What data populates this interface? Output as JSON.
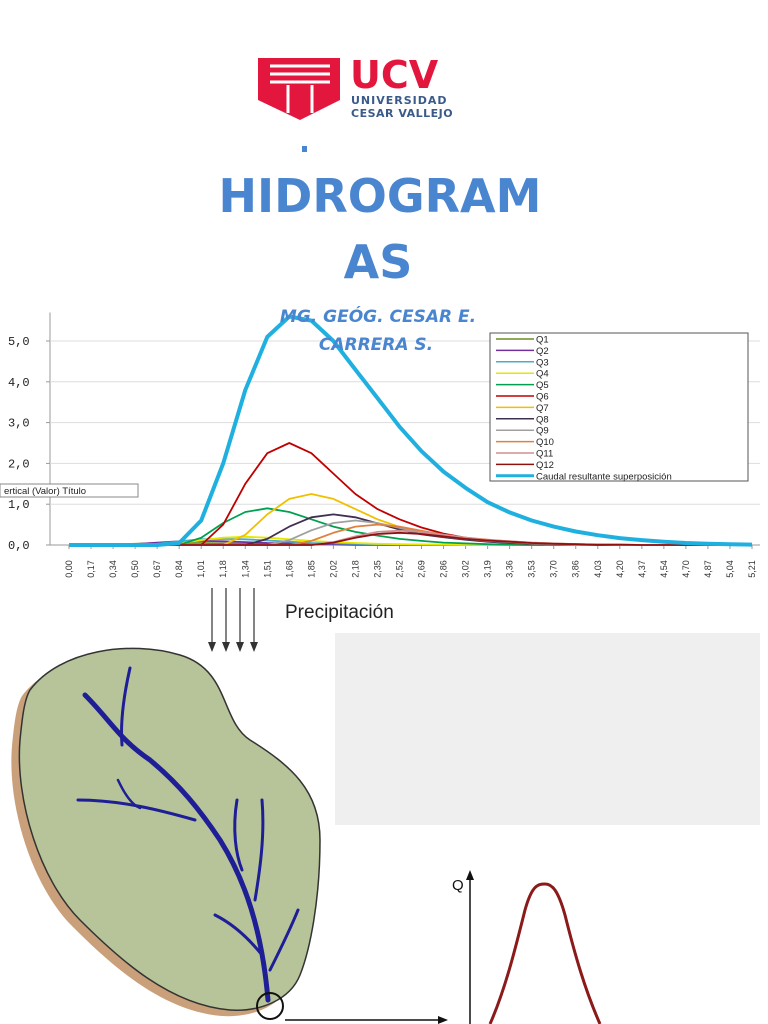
{
  "header": {
    "logo_main": "UCV",
    "logo_line1": "UNIVERSIDAD",
    "logo_line2": "CESAR VALLEJO",
    "title_lines": [
      "HIDROGRAM",
      "AS"
    ],
    "author_lines": [
      "MG. GEÓG. CESAR E.",
      "CARRERA S."
    ]
  },
  "chart_data": {
    "type": "line",
    "categories": [
      "0,00",
      "0,17",
      "0,34",
      "0,50",
      "0,67",
      "0,84",
      "1,01",
      "1,18",
      "1,34",
      "1,51",
      "1,68",
      "1,85",
      "2,02",
      "2,18",
      "2,35",
      "2,52",
      "2,69",
      "2,86",
      "3,02",
      "3,19",
      "3,36",
      "3,53",
      "3,70",
      "3,86",
      "4,03",
      "4,20",
      "4,37",
      "4,54",
      "4,70",
      "4,87",
      "5,04",
      "5,21"
    ],
    "ylim": [
      0,
      5.7
    ],
    "yticks": [
      {
        "value": 0,
        "label": "0,0"
      },
      {
        "value": 1,
        "label": "1,0"
      },
      {
        "value": 2,
        "label": "2,0"
      },
      {
        "value": 3,
        "label": "3,0"
      },
      {
        "value": 4,
        "label": "4,0"
      },
      {
        "value": 5,
        "label": "5,0"
      }
    ],
    "grid": true,
    "legend": "upper right",
    "tooltip": "ertical (Valor) Título",
    "series": [
      {
        "name": "Q1",
        "color": "#6b8e23",
        "values": [
          0,
          0,
          0.01,
          0.03,
          0.05,
          0.05,
          0.05,
          0.04,
          0.03,
          0.02,
          0.01,
          0.01,
          0.01,
          0,
          0,
          0,
          0,
          0,
          0,
          0,
          0,
          0,
          0,
          0,
          0,
          0,
          0,
          0,
          0,
          0,
          0,
          0
        ]
      },
      {
        "name": "Q2",
        "color": "#7030a0",
        "values": [
          0,
          0,
          0,
          0.02,
          0.06,
          0.09,
          0.1,
          0.09,
          0.07,
          0.05,
          0.04,
          0.03,
          0.02,
          0.01,
          0.01,
          0,
          0,
          0,
          0,
          0,
          0,
          0,
          0,
          0,
          0,
          0,
          0,
          0,
          0,
          0,
          0,
          0
        ]
      },
      {
        "name": "Q3",
        "color": "#4bacc6",
        "values": [
          0,
          0,
          0,
          0,
          0.03,
          0.09,
          0.14,
          0.15,
          0.14,
          0.11,
          0.08,
          0.05,
          0.04,
          0.03,
          0.02,
          0.01,
          0.01,
          0,
          0,
          0,
          0,
          0,
          0,
          0,
          0,
          0,
          0,
          0,
          0,
          0,
          0,
          0
        ]
      },
      {
        "name": "Q4",
        "color": "#e6e600",
        "values": [
          0,
          0,
          0,
          0,
          0,
          0.04,
          0.12,
          0.18,
          0.2,
          0.18,
          0.14,
          0.1,
          0.07,
          0.05,
          0.03,
          0.02,
          0.01,
          0.01,
          0,
          0,
          0,
          0,
          0,
          0,
          0,
          0,
          0,
          0,
          0,
          0,
          0,
          0
        ]
      },
      {
        "name": "Q5",
        "color": "#00a050",
        "values": [
          0,
          0,
          0,
          0,
          0,
          0,
          0.18,
          0.54,
          0.81,
          0.9,
          0.81,
          0.63,
          0.45,
          0.32,
          0.23,
          0.15,
          0.1,
          0.06,
          0.04,
          0.02,
          0.01,
          0,
          0,
          0,
          0,
          0,
          0,
          0,
          0,
          0,
          0,
          0
        ]
      },
      {
        "name": "Q6",
        "color": "#c00000",
        "values": [
          0,
          0,
          0,
          0,
          0,
          0,
          0,
          0.5,
          1.5,
          2.25,
          2.5,
          2.25,
          1.75,
          1.25,
          0.88,
          0.63,
          0.43,
          0.28,
          0.18,
          0.1,
          0.05,
          0.03,
          0,
          0,
          0,
          0,
          0,
          0,
          0,
          0,
          0,
          0
        ]
      },
      {
        "name": "Q7",
        "color": "#f0c000",
        "values": [
          0,
          0,
          0,
          0,
          0,
          0,
          0,
          0,
          0.25,
          0.75,
          1.13,
          1.25,
          1.13,
          0.88,
          0.63,
          0.44,
          0.31,
          0.21,
          0.14,
          0.09,
          0.05,
          0.03,
          0.01,
          0,
          0,
          0,
          0,
          0,
          0,
          0,
          0,
          0
        ]
      },
      {
        "name": "Q8",
        "color": "#403050",
        "values": [
          0,
          0,
          0,
          0,
          0,
          0,
          0,
          0,
          0,
          0.15,
          0.45,
          0.68,
          0.75,
          0.68,
          0.53,
          0.38,
          0.26,
          0.19,
          0.13,
          0.08,
          0.05,
          0.03,
          0.02,
          0.01,
          0,
          0,
          0,
          0,
          0,
          0,
          0,
          0
        ]
      },
      {
        "name": "Q9",
        "color": "#a0a0a0",
        "values": [
          0,
          0,
          0,
          0,
          0,
          0,
          0,
          0,
          0,
          0,
          0.12,
          0.36,
          0.54,
          0.6,
          0.54,
          0.42,
          0.3,
          0.21,
          0.15,
          0.1,
          0.07,
          0.04,
          0.02,
          0.01,
          0.01,
          0,
          0,
          0,
          0,
          0,
          0,
          0
        ]
      },
      {
        "name": "Q10",
        "color": "#e08040",
        "values": [
          0,
          0,
          0,
          0,
          0,
          0,
          0,
          0,
          0,
          0,
          0,
          0.1,
          0.3,
          0.45,
          0.5,
          0.45,
          0.35,
          0.25,
          0.18,
          0.13,
          0.09,
          0.06,
          0.04,
          0.02,
          0.01,
          0.01,
          0,
          0,
          0,
          0,
          0,
          0
        ]
      },
      {
        "name": "Q11",
        "color": "#d09090",
        "values": [
          0,
          0,
          0,
          0,
          0,
          0,
          0,
          0,
          0,
          0,
          0,
          0,
          0.07,
          0.21,
          0.32,
          0.35,
          0.32,
          0.25,
          0.18,
          0.12,
          0.09,
          0.06,
          0.04,
          0.02,
          0.01,
          0.01,
          0,
          0,
          0,
          0,
          0,
          0
        ]
      },
      {
        "name": "Q12",
        "color": "#901010",
        "values": [
          0,
          0,
          0,
          0,
          0,
          0,
          0,
          0,
          0,
          0,
          0,
          0,
          0.06,
          0.18,
          0.27,
          0.3,
          0.27,
          0.21,
          0.15,
          0.11,
          0.08,
          0.05,
          0.03,
          0.02,
          0.01,
          0.01,
          0,
          0,
          0,
          0,
          0,
          0
        ]
      },
      {
        "name": "Caudal resultante superposición",
        "color": "#1fb0e0",
        "values": [
          0,
          0,
          0,
          0,
          0,
          0.05,
          0.6,
          2.0,
          3.8,
          5.1,
          5.6,
          5.5,
          5.0,
          4.3,
          3.6,
          2.9,
          2.3,
          1.8,
          1.4,
          1.05,
          0.8,
          0.6,
          0.45,
          0.33,
          0.24,
          0.17,
          0.12,
          0.08,
          0.05,
          0.03,
          0.02,
          0.01
        ]
      }
    ]
  },
  "diagram": {
    "precipitation_label": "Precipitación",
    "q_axis_label": "Q"
  }
}
